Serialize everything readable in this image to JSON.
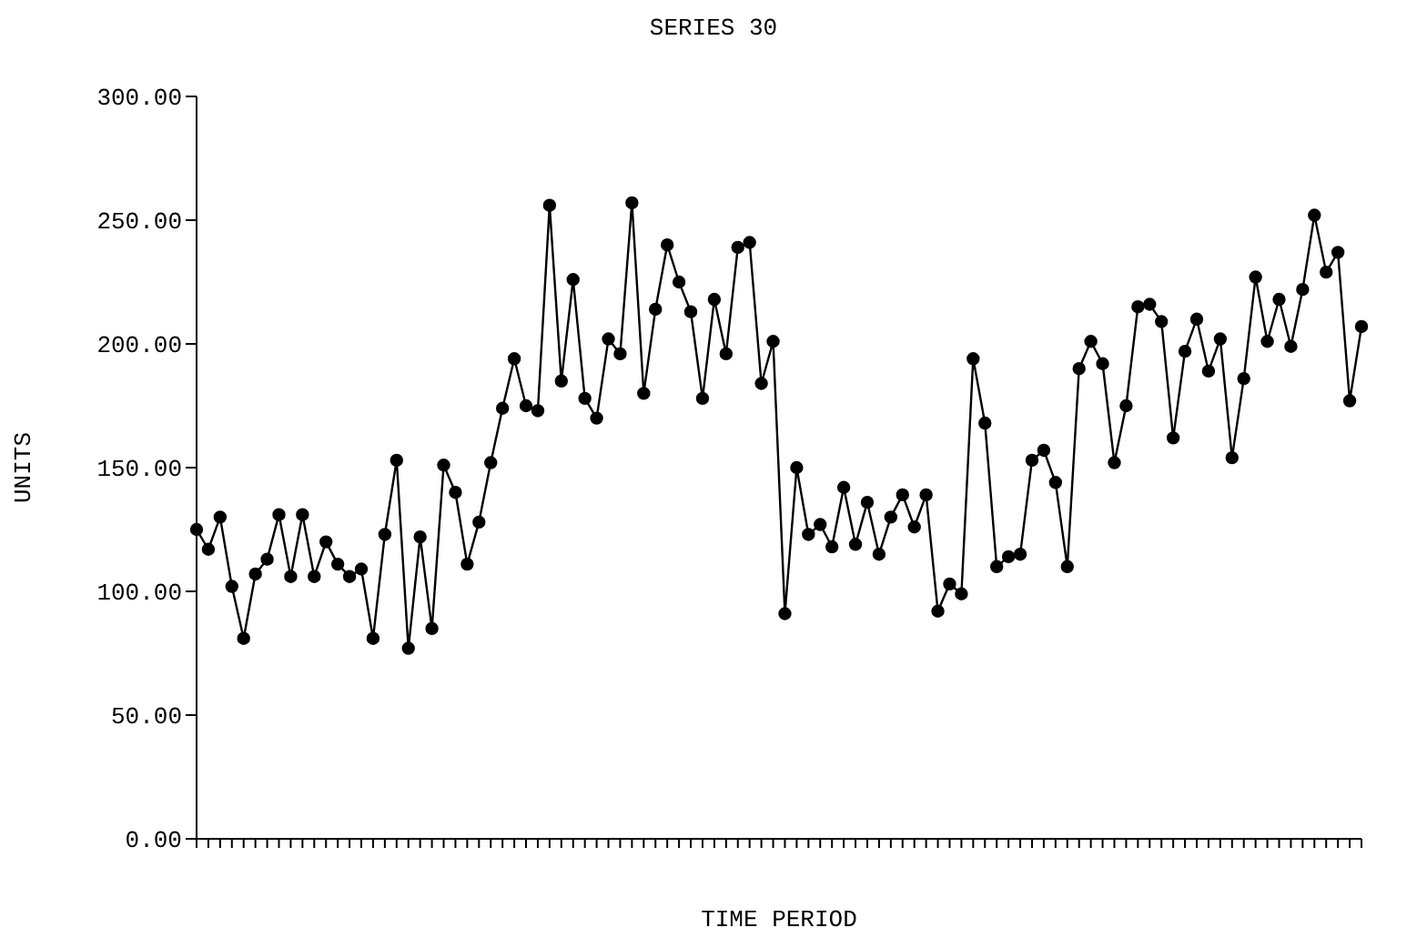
{
  "chart_data": {
    "type": "line",
    "title": "SERIES 30",
    "xlabel": "TIME PERIOD",
    "ylabel": "UNITS",
    "categories": [
      null,
      null,
      null,
      null,
      null,
      null,
      null,
      null,
      null,
      null,
      null,
      null,
      null,
      null,
      null,
      null,
      null,
      null,
      null,
      null,
      null,
      null,
      null,
      null,
      null,
      null,
      null,
      null,
      null,
      null,
      null,
      null,
      null,
      null,
      null,
      null,
      null,
      null,
      null,
      null,
      null,
      null,
      null,
      null,
      null,
      null,
      null,
      null,
      null,
      null,
      null,
      null,
      null,
      null,
      null,
      null,
      null,
      null,
      null,
      null,
      null,
      null,
      null,
      null,
      null,
      null,
      null,
      null,
      null,
      null,
      null,
      null,
      null,
      null,
      null,
      null,
      null,
      null,
      null,
      null,
      null,
      null,
      null,
      null,
      null,
      null,
      null,
      null,
      null,
      null,
      null,
      null,
      null,
      null,
      null,
      null,
      null,
      null,
      null,
      null
    ],
    "series": [
      {
        "color": "#000000",
        "values": [
          125,
          117,
          130,
          102,
          81,
          107,
          113,
          131,
          106,
          131,
          106,
          120,
          111,
          106,
          109,
          81,
          123,
          153,
          77,
          122,
          85,
          151,
          140,
          111,
          128,
          152,
          174,
          194,
          175,
          173,
          256,
          185,
          226,
          178,
          170,
          202,
          196,
          257,
          180,
          214,
          240,
          225,
          213,
          178,
          218,
          196,
          239,
          241,
          184,
          201,
          91,
          150,
          123,
          127,
          118,
          142,
          119,
          136,
          115,
          130,
          139,
          126,
          139,
          92,
          103,
          99,
          194,
          168,
          110,
          114,
          115,
          153,
          157,
          144,
          110,
          190,
          201,
          192,
          152,
          175,
          215,
          216,
          209,
          162,
          197,
          210,
          189,
          202,
          154,
          186,
          227,
          201,
          218,
          199,
          222,
          252,
          229,
          237,
          177,
          207
        ]
      }
    ],
    "ylim": [
      0,
      300
    ],
    "yticks": [
      {
        "value": 0,
        "label": "0.00"
      },
      {
        "value": 50,
        "label": "50.00"
      },
      {
        "value": 100,
        "label": "100.00"
      },
      {
        "value": 150,
        "label": "150.00"
      },
      {
        "value": 200,
        "label": "200.00"
      },
      {
        "value": 250,
        "label": "250.00"
      },
      {
        "value": 300,
        "label": "300.00"
      }
    ],
    "tick_labels": "y",
    "grid": false,
    "legend": false,
    "marker": "circle",
    "line_style": "solid"
  }
}
